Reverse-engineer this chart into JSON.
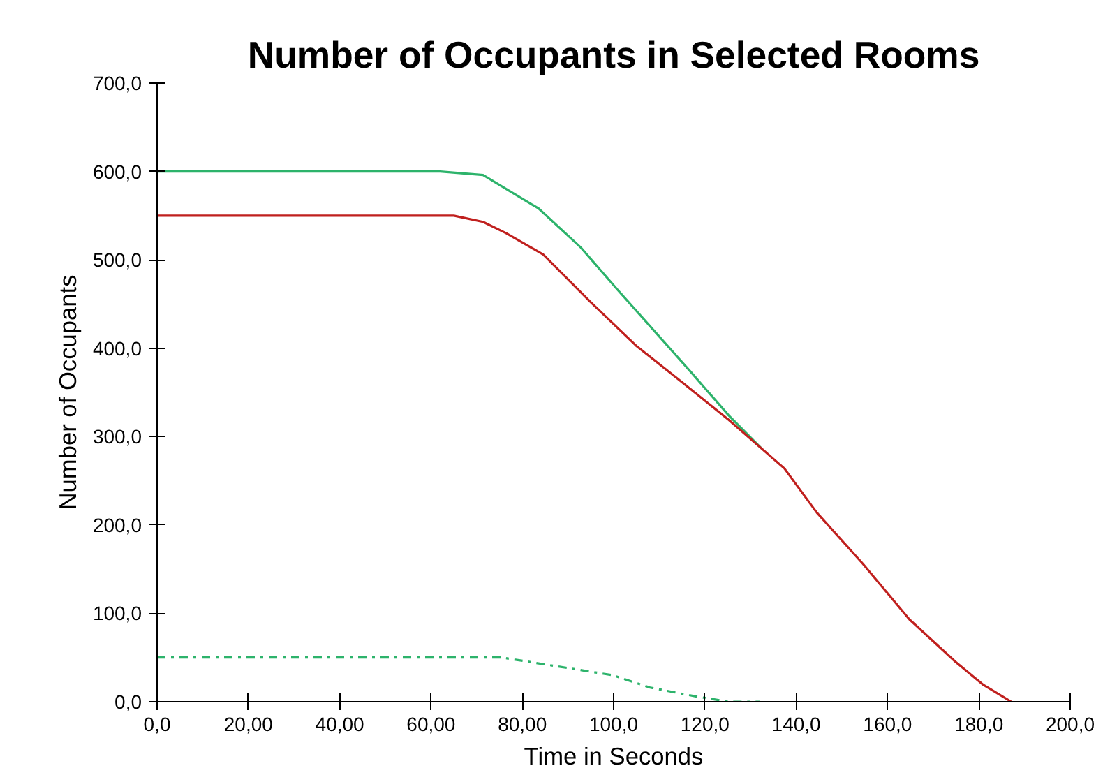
{
  "chart_data": {
    "type": "line",
    "title": "Number of Occupants in Selected Rooms",
    "xlabel": "Time in Seconds",
    "ylabel": "Number of Occupants",
    "series": [
      {
        "color": "#2db36b",
        "line_style": "solid",
        "x": [
          0,
          62,
          71.4,
          83.6,
          92.8,
          100.9,
          109,
          117.1,
          125.2,
          132.3
        ],
        "values": [
          600,
          600,
          596,
          558,
          514,
          466,
          419,
          372,
          324,
          287
        ]
      },
      {
        "color": "#c0201e",
        "line_style": "solid",
        "x": [
          0,
          65,
          71.4,
          76.5,
          84.6,
          94.8,
          104.9,
          115.1,
          125.2,
          137.4,
          144.5,
          154.6,
          164.8,
          174.9,
          181,
          187.1
        ],
        "values": [
          550,
          550,
          543,
          530,
          506,
          453,
          403,
          361,
          319,
          264,
          214,
          156,
          93,
          45,
          19,
          0
        ]
      },
      {
        "color": "#2db36b",
        "line_style": "dashdot",
        "x": [
          0,
          75.5,
          87.7,
          99.8,
          108,
          118,
          125.2,
          132
        ],
        "values": [
          50,
          50,
          40,
          30,
          16,
          6,
          0,
          0
        ]
      }
    ],
    "xlim": [
      0,
      200
    ],
    "ylim": [
      0,
      700
    ],
    "xticks": [
      {
        "value": 0,
        "label": "0,0"
      },
      {
        "value": 20,
        "label": "20,00"
      },
      {
        "value": 40,
        "label": "40,00"
      },
      {
        "value": 60,
        "label": "60,00"
      },
      {
        "value": 80,
        "label": "80,00"
      },
      {
        "value": 100,
        "label": "100,0"
      },
      {
        "value": 120,
        "label": "120,0"
      },
      {
        "value": 140,
        "label": "140,0"
      },
      {
        "value": 160,
        "label": "160,0"
      },
      {
        "value": 180,
        "label": "180,0"
      },
      {
        "value": 200,
        "label": "200,0"
      }
    ],
    "yticks": [
      {
        "value": 0,
        "label": "0,0"
      },
      {
        "value": 100,
        "label": "100,0"
      },
      {
        "value": 200,
        "label": "200,0"
      },
      {
        "value": 300,
        "label": "300,0"
      },
      {
        "value": 400,
        "label": "400,0"
      },
      {
        "value": 500,
        "label": "500,0"
      },
      {
        "value": 600,
        "label": "600,0"
      },
      {
        "value": 700,
        "label": "700,0"
      }
    ],
    "grid": false,
    "marker": "none"
  }
}
